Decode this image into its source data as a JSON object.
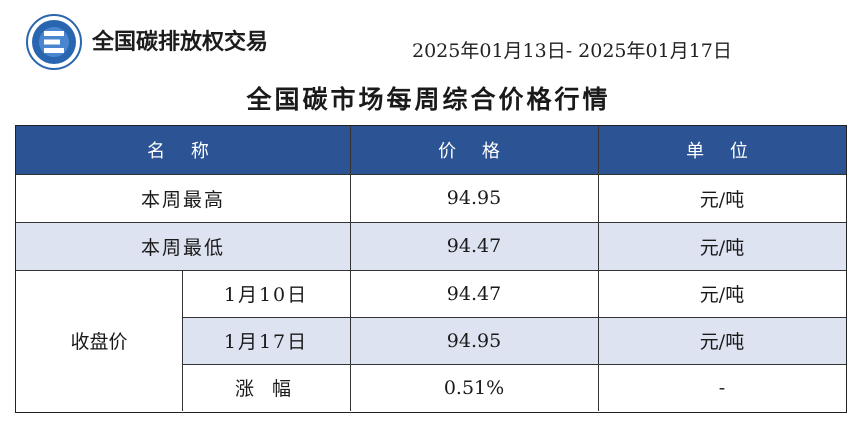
{
  "header": {
    "org_name": "全国碳排放权交易",
    "date_range": "2025年01月13日- 2025年01月17日",
    "title": "全国碳市场每周综合价格行情"
  },
  "table": {
    "columns": {
      "name": "名 称",
      "price": "价 格",
      "unit": "单 位"
    },
    "rows": [
      {
        "name": "本周最高",
        "price": "94.95",
        "unit": "元/吨"
      },
      {
        "name": "本周最低",
        "price": "94.47",
        "unit": "元/吨"
      }
    ],
    "closing": {
      "group_label": "收盘价",
      "rows": [
        {
          "name": "1月10日",
          "price": "94.47",
          "unit": "元/吨"
        },
        {
          "name": "1月17日",
          "price": "94.95",
          "unit": "元/吨"
        },
        {
          "name": "涨 幅",
          "price": "0.51%",
          "unit": "-"
        }
      ]
    }
  },
  "colors": {
    "header_bg": "#2c5494",
    "shade_bg": "#dde3f0",
    "logo_blue": "#2a66b0"
  },
  "icons": {
    "logo": "cets-logo-icon"
  }
}
